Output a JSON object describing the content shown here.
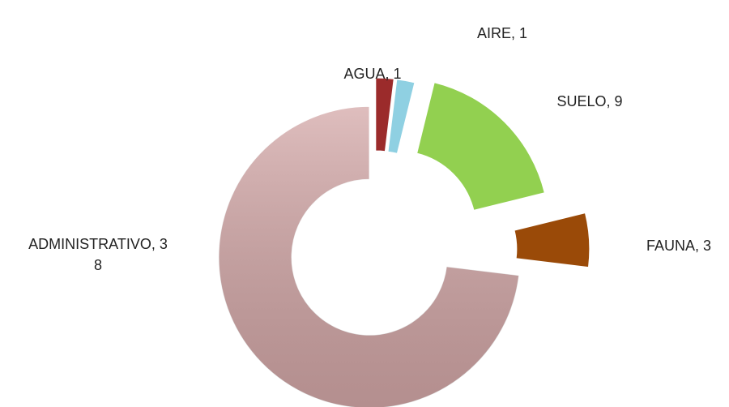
{
  "chart_data": {
    "type": "donut",
    "values": [
      1,
      1,
      9,
      3,
      38
    ],
    "value_labels": [
      "AGUA, 1",
      "AIRE, 1",
      "SUELO, 9",
      "FAUNA, 3",
      "ADMINISTRATIVO, 38"
    ],
    "colors": [
      "#9b2b2b",
      "#8fd0e2",
      "#92d050",
      "#9a4a08",
      "#d4a8a8"
    ]
  }
}
